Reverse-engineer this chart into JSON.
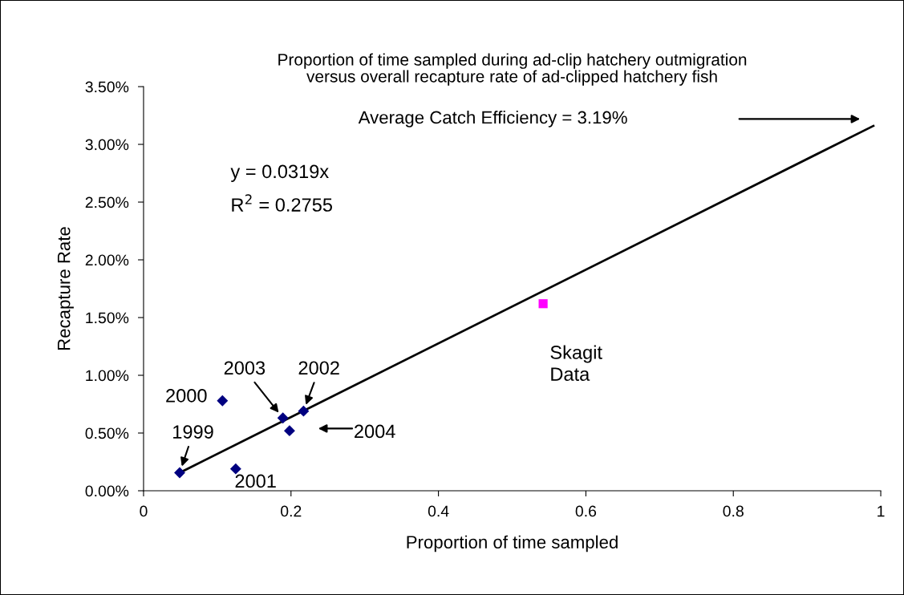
{
  "chart_data": {
    "type": "scatter",
    "title": "Proportion of time sampled during ad-clip hatchery outmigration\nversus overall recapture rate of ad-clipped hatchery fish",
    "xlabel": "Proportion of time sampled",
    "ylabel": "Recapture Rate",
    "series": [
      {
        "marker": "diamond",
        "color": "#000080",
        "x": [
          0.049,
          0.107,
          0.125,
          0.189,
          0.198,
          0.217
        ],
        "values": [
          0.00156,
          0.0078,
          0.0019,
          0.0063,
          0.0052,
          0.0069
        ]
      },
      {
        "marker": "square",
        "color": "#ff00ff",
        "x": [
          0.542
        ],
        "values": [
          0.0162
        ]
      },
      {
        "type": "line",
        "marker": "none",
        "line_style": "solid",
        "color": "#000000",
        "x": [
          0.049,
          0.99
        ],
        "values": [
          0.00156,
          0.0316
        ]
      }
    ],
    "xlim": [
      0,
      1
    ],
    "xticks": [
      0,
      0.2,
      0.4,
      0.6,
      0.8,
      1
    ],
    "ylim": [
      0,
      0.035
    ],
    "yticks": [
      {
        "value": 0,
        "label": "0.00%"
      },
      {
        "value": 0.005,
        "label": "0.50%"
      },
      {
        "value": 0.01,
        "label": "1.00%"
      },
      {
        "value": 0.015,
        "label": "1.50%"
      },
      {
        "value": 0.02,
        "label": "2.00%"
      },
      {
        "value": 0.025,
        "label": "2.50%"
      },
      {
        "value": 0.03,
        "label": "3.00%"
      },
      {
        "value": 0.035,
        "label": "3.50%"
      }
    ],
    "grid": false,
    "annotations": [
      {
        "text": "1999",
        "x": 0.049,
        "y": 0.00156
      },
      {
        "text": "2000",
        "x": 0.107,
        "y": 0.0078
      },
      {
        "text": "2001",
        "x": 0.125,
        "y": 0.0019
      },
      {
        "text": "2003",
        "x": 0.189,
        "y": 0.0063
      },
      "2004",
      {
        "text": "2002",
        "x": 0.217,
        "y": 0.0069
      },
      "Average Catch Efficiency = 3.19%",
      "y = 0.0319x",
      "R$^{2}$ = 0.2755",
      {
        "text": "Skagit\nData",
        "x": 0.542,
        "y": 0.0162
      }
    ]
  }
}
